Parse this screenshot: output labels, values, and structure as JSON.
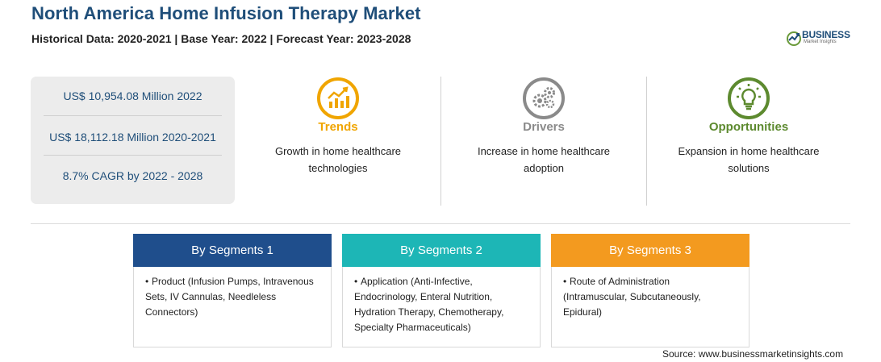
{
  "header": {
    "title": "North America Home Infusion Therapy Market",
    "subtitle": "Historical Data: 2020-2021 | Base Year: 2022 | Forecast Year: 2023-2028"
  },
  "logo": {
    "name": "BUSINESS",
    "tagline": "Market Insights"
  },
  "stats": [
    "US$ 10,954.08 Million 2022",
    "US$ 18,112.18 Million 2020-2021",
    "8.7% CAGR by 2022 - 2028"
  ],
  "features": {
    "trends": {
      "title": "Trends",
      "text_line1": "Growth in home healthcare",
      "text_line2": "technologies",
      "color": "#f0a500",
      "icon": "trend-chart-icon"
    },
    "drivers": {
      "title": "Drivers",
      "text_line1": "Increase in home healthcare",
      "text_line2": "adoption",
      "color": "#8a8a8a",
      "icon": "gears-icon"
    },
    "opportunities": {
      "title": "Opportunities",
      "text_line1": "Expansion in home healthcare",
      "text_line2": "solutions",
      "color": "#5d8a2f",
      "icon": "lightbulb-icon"
    }
  },
  "segments": [
    {
      "title": "By Segments 1",
      "color": "#1f4e8c",
      "lines": [
        "Product (Infusion Pumps, Intravenous",
        "Sets, IV Cannulas, Needleless",
        "Connectors)"
      ]
    },
    {
      "title": "By Segments 2",
      "color": "#1db6b6",
      "lines": [
        "Application (Anti-Infective,",
        "Endocrinology, Enteral Nutrition,",
        "Hydration Therapy, Chemotherapy,",
        "Specialty Pharmaceuticals)"
      ]
    },
    {
      "title": "By Segments 3",
      "color": "#f39a1f",
      "lines": [
        "Route of Administration",
        "(Intramuscular, Subcutaneously,",
        "Epidural)"
      ]
    }
  ],
  "source": "Source: www.businessmarketinsights.com"
}
